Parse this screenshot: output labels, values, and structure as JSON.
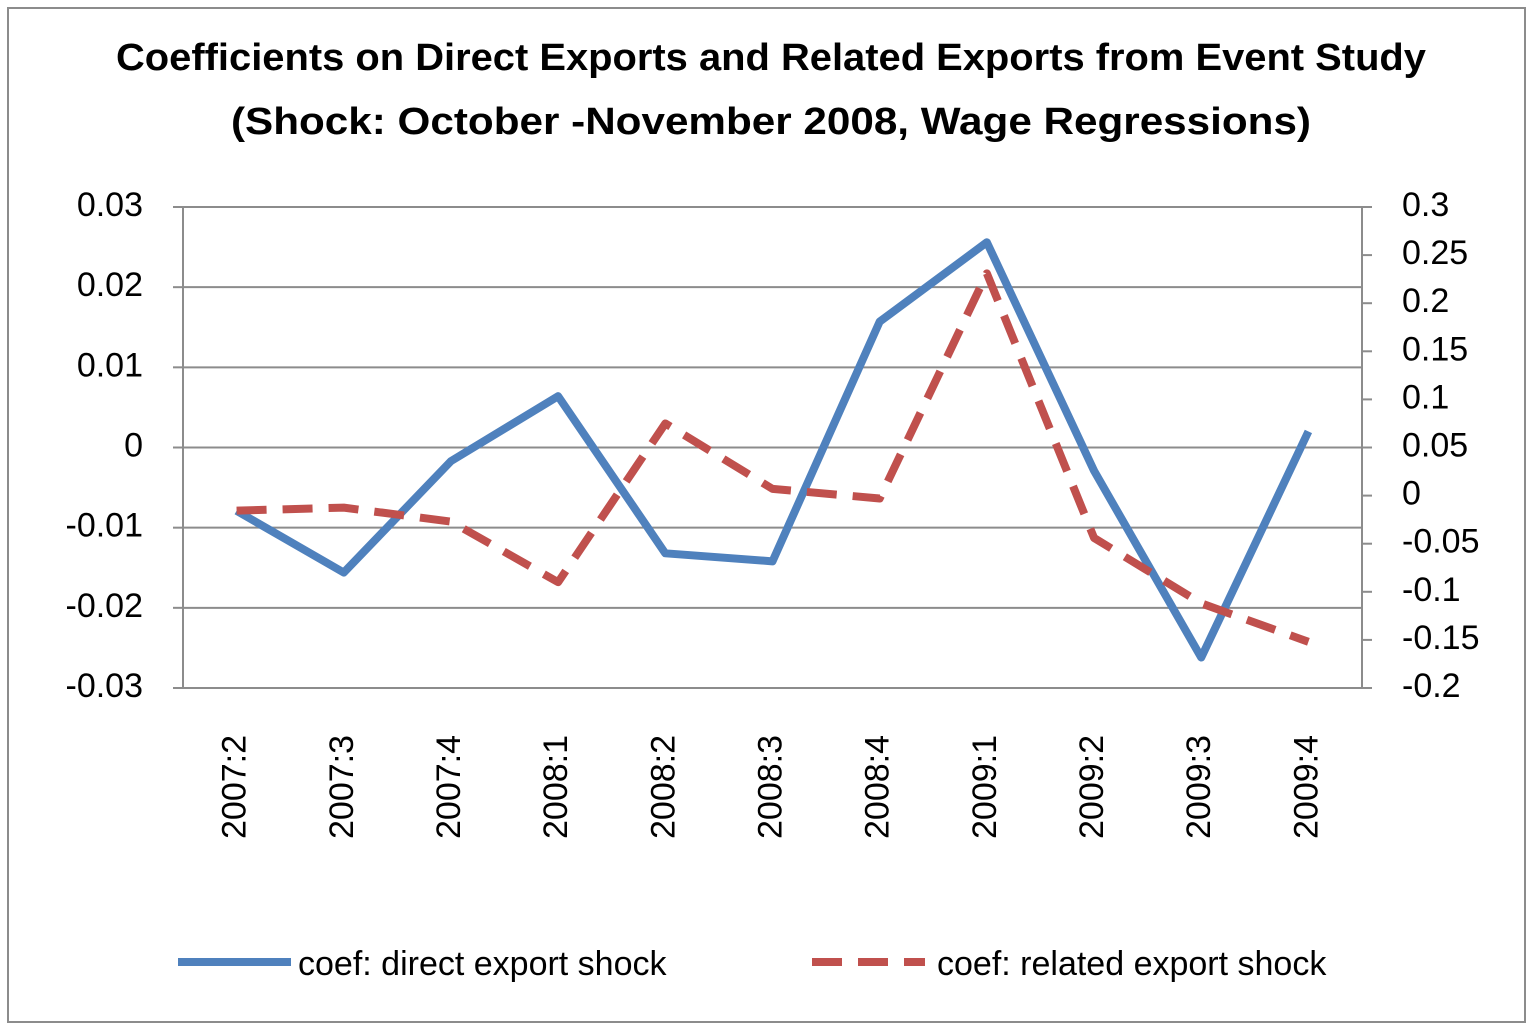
{
  "chart_data": {
    "type": "line",
    "title": [
      "Coefficients on Direct Exports and Related Exports from Event Study",
      "(Shock: October -November 2008,  Wage Regressions)"
    ],
    "categories": [
      "2007:2",
      "2007:3",
      "2007:4",
      "2008:1",
      "2008:2",
      "2008:3",
      "2008:4",
      "2009:1",
      "2009:2",
      "2009:3",
      "2009:4"
    ],
    "series": [
      {
        "name": "coef: direct export shock",
        "color": "#4f81bd",
        "dash": false,
        "values": [
          -0.0079,
          -0.0156,
          -0.0017,
          0.0064,
          -0.0132,
          -0.0142,
          0.0157,
          0.0256,
          -0.0029,
          -0.0262,
          0.002
        ]
      },
      {
        "name": "coef: related export shock",
        "color": "#c0504d",
        "dash": true,
        "axis": "y2",
        "values": [
          -0.0156,
          -0.0125,
          -0.027,
          -0.09,
          0.075,
          0.007,
          -0.003,
          0.231,
          -0.044,
          -0.112,
          -0.152
        ]
      }
    ],
    "ylim": [
      -0.03,
      0.03
    ],
    "yticks": [
      -0.03,
      -0.02,
      -0.01,
      0,
      0.01,
      0.02,
      0.03
    ],
    "y2lim": [
      -0.2,
      0.3
    ],
    "y2ticks": [
      -0.2,
      -0.15,
      -0.1,
      -0.05,
      0,
      0.05,
      0.1,
      0.15,
      0.2,
      0.25,
      0.3
    ],
    "grid": true,
    "legend": "bottom"
  }
}
